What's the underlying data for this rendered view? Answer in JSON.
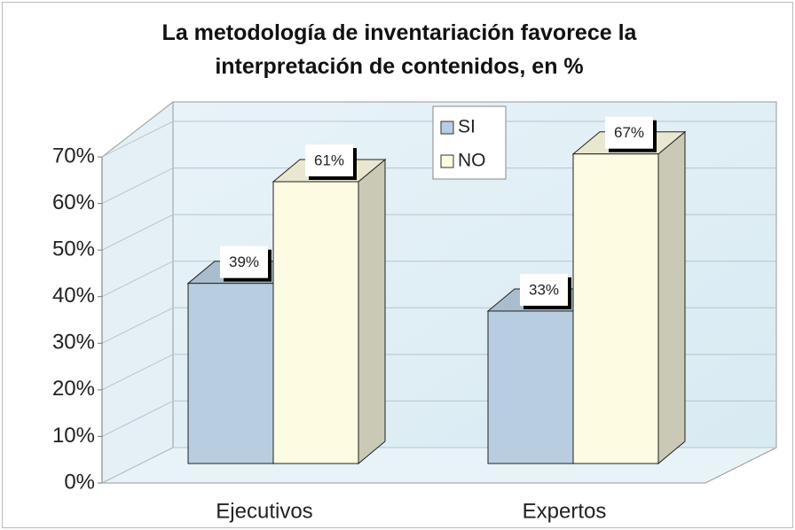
{
  "chart_data": {
    "type": "bar3d",
    "title": "La metodología de inventariación favorece la interpretación de contenidos, en %",
    "categories": [
      "Ejecutivos",
      "Expertos"
    ],
    "series": [
      {
        "name": "SI",
        "color": "#b8cde0",
        "values": [
          39,
          33
        ],
        "value_labels": [
          "39%",
          "33%"
        ]
      },
      {
        "name": "NO",
        "color": "#fdfbe2",
        "values": [
          61,
          67
        ],
        "value_labels": [
          "61%",
          "67%"
        ]
      }
    ],
    "ylim": [
      0,
      70
    ],
    "yticks": [
      {
        "value": 0,
        "label": "0%"
      },
      {
        "value": 10,
        "label": "10%"
      },
      {
        "value": 20,
        "label": "20%"
      },
      {
        "value": 30,
        "label": "30%"
      },
      {
        "value": 40,
        "label": "40%"
      },
      {
        "value": 50,
        "label": "50%"
      },
      {
        "value": 60,
        "label": "60%"
      },
      {
        "value": 70,
        "label": "70%"
      }
    ],
    "grid": true,
    "legend": "top"
  }
}
